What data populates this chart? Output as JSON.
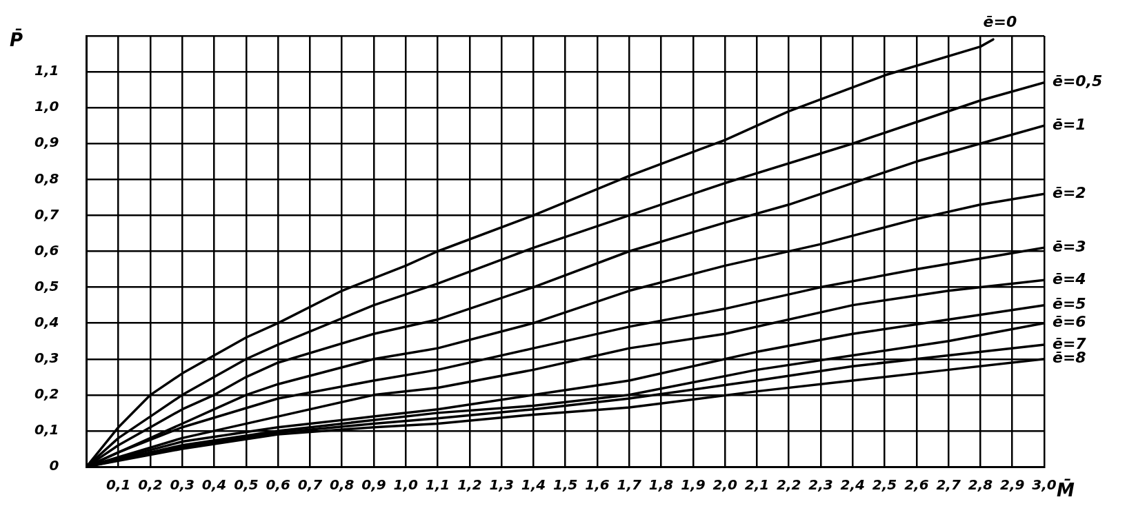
{
  "chart_data": {
    "type": "line",
    "xlabel": "M̄",
    "ylabel": "P̄",
    "xlim": [
      0,
      3.0
    ],
    "ylim": [
      0,
      1.2
    ],
    "xticks": [
      {
        "value": 0.1,
        "label": "0,1"
      },
      {
        "value": 0.2,
        "label": "0,2"
      },
      {
        "value": 0.3,
        "label": "0,3"
      },
      {
        "value": 0.4,
        "label": "0,4"
      },
      {
        "value": 0.5,
        "label": "0,5"
      },
      {
        "value": 0.6,
        "label": "0,6"
      },
      {
        "value": 0.7,
        "label": "0,7"
      },
      {
        "value": 0.8,
        "label": "0,8"
      },
      {
        "value": 0.9,
        "label": "0,9"
      },
      {
        "value": 1.0,
        "label": "1,0"
      },
      {
        "value": 1.1,
        "label": "1,1"
      },
      {
        "value": 1.2,
        "label": "1,2"
      },
      {
        "value": 1.3,
        "label": "1,3"
      },
      {
        "value": 1.4,
        "label": "1,4"
      },
      {
        "value": 1.5,
        "label": "1,5"
      },
      {
        "value": 1.6,
        "label": "1,6"
      },
      {
        "value": 1.7,
        "label": "1,7"
      },
      {
        "value": 1.8,
        "label": "1,8"
      },
      {
        "value": 1.9,
        "label": "1,9"
      },
      {
        "value": 2.0,
        "label": "2,0"
      },
      {
        "value": 2.1,
        "label": "2,1"
      },
      {
        "value": 2.2,
        "label": "2,2"
      },
      {
        "value": 2.3,
        "label": "2,3"
      },
      {
        "value": 2.4,
        "label": "2,4"
      },
      {
        "value": 2.5,
        "label": "2,5"
      },
      {
        "value": 2.6,
        "label": "2,6"
      },
      {
        "value": 2.7,
        "label": "2,7"
      },
      {
        "value": 2.8,
        "label": "2,8"
      },
      {
        "value": 2.9,
        "label": "2,9"
      },
      {
        "value": 3.0,
        "label": "3,0"
      }
    ],
    "yticks": [
      0,
      {
        "value": 0.1,
        "label": "0,1"
      },
      {
        "value": 0.2,
        "label": "0,2"
      },
      {
        "value": 0.3,
        "label": "0,3"
      },
      {
        "value": 0.4,
        "label": "0,4"
      },
      {
        "value": 0.5,
        "label": "0,5"
      },
      {
        "value": 0.6,
        "label": "0,6"
      },
      {
        "value": 0.7,
        "label": "0,7"
      },
      {
        "value": 0.8,
        "label": "0,8"
      },
      {
        "value": 0.9,
        "label": "0,9"
      },
      {
        "value": 1.0,
        "label": "1,0"
      },
      {
        "value": 1.1,
        "label": "1,1"
      },
      {
        "value": 1.2,
        "label": null
      }
    ],
    "grid": true,
    "legend": false,
    "marker": "none",
    "line_style": "solid",
    "series": [
      {
        "name": "ē=0",
        "color": "#000000",
        "x": [
          0,
          0.1,
          0.2,
          0.3,
          0.4,
          0.5,
          0.6,
          0.8,
          1.0,
          1.1,
          1.4,
          1.7,
          2.0,
          2.2,
          2.5,
          2.8,
          2.84
        ],
        "values": [
          0,
          0.11,
          0.2,
          0.26,
          0.31,
          0.36,
          0.4,
          0.49,
          0.56,
          0.6,
          0.7,
          0.81,
          0.91,
          0.99,
          1.09,
          1.17,
          1.19
        ]
      },
      {
        "name": "ē=0,5",
        "color": "#000000",
        "x": [
          0,
          0.1,
          0.2,
          0.3,
          0.4,
          0.5,
          0.6,
          0.9,
          1.1,
          1.4,
          1.7,
          2.0,
          2.4,
          2.6,
          2.8,
          3.0
        ],
        "values": [
          0,
          0.08,
          0.14,
          0.2,
          0.25,
          0.3,
          0.34,
          0.45,
          0.51,
          0.61,
          0.7,
          0.79,
          0.9,
          0.96,
          1.02,
          1.07
        ]
      },
      {
        "name": "ē=1",
        "color": "#000000",
        "x": [
          0,
          0.1,
          0.2,
          0.3,
          0.4,
          0.5,
          0.6,
          0.9,
          1.1,
          1.4,
          1.7,
          2.0,
          2.2,
          2.4,
          2.6,
          2.8,
          3.0
        ],
        "values": [
          0,
          0.06,
          0.11,
          0.16,
          0.2,
          0.25,
          0.29,
          0.37,
          0.41,
          0.5,
          0.6,
          0.68,
          0.73,
          0.79,
          0.85,
          0.9,
          0.95
        ]
      },
      {
        "name": "ē=2",
        "color": "#000000",
        "x": [
          0,
          0.1,
          0.2,
          0.3,
          0.4,
          0.5,
          0.6,
          0.9,
          1.1,
          1.4,
          1.7,
          2.0,
          2.3,
          2.6,
          2.8,
          3.0
        ],
        "values": [
          0,
          0.04,
          0.08,
          0.12,
          0.16,
          0.2,
          0.23,
          0.3,
          0.33,
          0.4,
          0.49,
          0.56,
          0.62,
          0.69,
          0.73,
          0.76
        ]
      },
      {
        "name": "ē=3",
        "color": "#000000",
        "x": [
          0,
          0.1,
          0.3,
          0.6,
          0.9,
          1.1,
          1.4,
          1.7,
          2.0,
          2.3,
          2.6,
          2.8,
          3.0
        ],
        "values": [
          0,
          0.04,
          0.11,
          0.19,
          0.24,
          0.27,
          0.33,
          0.39,
          0.44,
          0.5,
          0.55,
          0.58,
          0.61
        ]
      },
      {
        "name": "ē=4",
        "color": "#000000",
        "x": [
          0,
          0.3,
          0.6,
          0.9,
          1.1,
          1.4,
          1.7,
          2.0,
          2.4,
          2.7,
          3.0
        ],
        "values": [
          0,
          0.08,
          0.14,
          0.2,
          0.22,
          0.27,
          0.33,
          0.37,
          0.45,
          0.49,
          0.52
        ]
      },
      {
        "name": "ē=5",
        "color": "#000000",
        "x": [
          0,
          0.3,
          0.6,
          0.9,
          1.1,
          1.4,
          1.7,
          2.1,
          2.4,
          2.7,
          3.0
        ],
        "values": [
          0,
          0.07,
          0.11,
          0.14,
          0.16,
          0.2,
          0.24,
          0.32,
          0.37,
          0.41,
          0.45
        ]
      },
      {
        "name": "ē=6",
        "color": "#000000",
        "x": [
          0,
          0.3,
          0.6,
          0.9,
          1.1,
          1.4,
          1.7,
          2.1,
          2.4,
          2.7,
          3.0
        ],
        "values": [
          0,
          0.06,
          0.1,
          0.13,
          0.15,
          0.17,
          0.2,
          0.27,
          0.31,
          0.35,
          0.4
        ]
      },
      {
        "name": "ē=7",
        "color": "#000000",
        "x": [
          0,
          0.3,
          0.6,
          0.9,
          1.1,
          1.4,
          1.7,
          2.1,
          2.4,
          2.7,
          3.0
        ],
        "values": [
          0,
          0.055,
          0.095,
          0.12,
          0.135,
          0.16,
          0.19,
          0.24,
          0.28,
          0.31,
          0.34
        ]
      },
      {
        "name": "ē=8",
        "color": "#000000",
        "x": [
          0,
          0.3,
          0.6,
          0.9,
          1.1,
          1.4,
          1.7,
          2.1,
          2.4,
          2.7,
          3.0
        ],
        "values": [
          0,
          0.05,
          0.09,
          0.11,
          0.12,
          0.145,
          0.165,
          0.21,
          0.24,
          0.27,
          0.3
        ]
      }
    ]
  }
}
